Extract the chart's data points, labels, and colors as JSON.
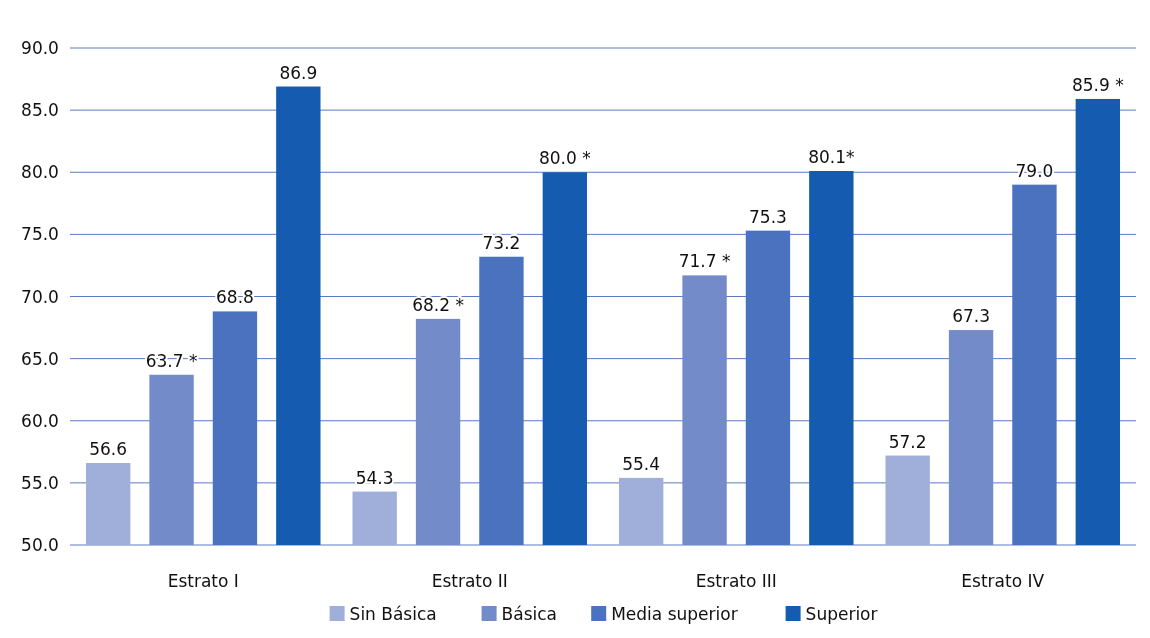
{
  "chart_data": {
    "type": "bar",
    "categories": [
      "Estrato I",
      "Estrato II",
      "Estrato III",
      "Estrato IV"
    ],
    "series": [
      {
        "name": "Sin Básica",
        "color": "#9fafd9",
        "values": [
          56.6,
          54.3,
          55.4,
          57.2
        ],
        "value_labels": [
          "56.6",
          "54.3",
          "55.4",
          "57.2"
        ]
      },
      {
        "name": "Básica",
        "color": "#738bc8",
        "values": [
          63.7,
          68.2,
          71.7,
          67.3
        ],
        "value_labels": [
          "63.7 *",
          "68.2 *",
          "71.7 *",
          "67.3"
        ]
      },
      {
        "name": "Media superior",
        "color": "#4a72bf",
        "values": [
          68.8,
          73.2,
          75.3,
          79.0
        ],
        "value_labels": [
          "68.8",
          "73.2",
          "75.3",
          "79.0"
        ]
      },
      {
        "name": "Superior",
        "color": "#155bb0",
        "values": [
          86.9,
          80.0,
          80.1,
          85.9
        ],
        "value_labels": [
          "86.9",
          "80.0 *",
          "80.1*",
          "85.9 *"
        ]
      }
    ],
    "ylim": [
      50,
      90
    ],
    "yticks": [
      {
        "value": 50,
        "label": "50.0"
      },
      {
        "value": 55,
        "label": "55.0"
      },
      {
        "value": 60,
        "label": "60.0"
      },
      {
        "value": 65,
        "label": "65.0"
      },
      {
        "value": 70,
        "label": "70.0"
      },
      {
        "value": 75,
        "label": "75.0"
      },
      {
        "value": 80,
        "label": "80.0"
      },
      {
        "value": 85,
        "label": "85.0"
      },
      {
        "value": 90,
        "label": "90.0"
      }
    ],
    "grid": "y",
    "legend": "bottom"
  }
}
